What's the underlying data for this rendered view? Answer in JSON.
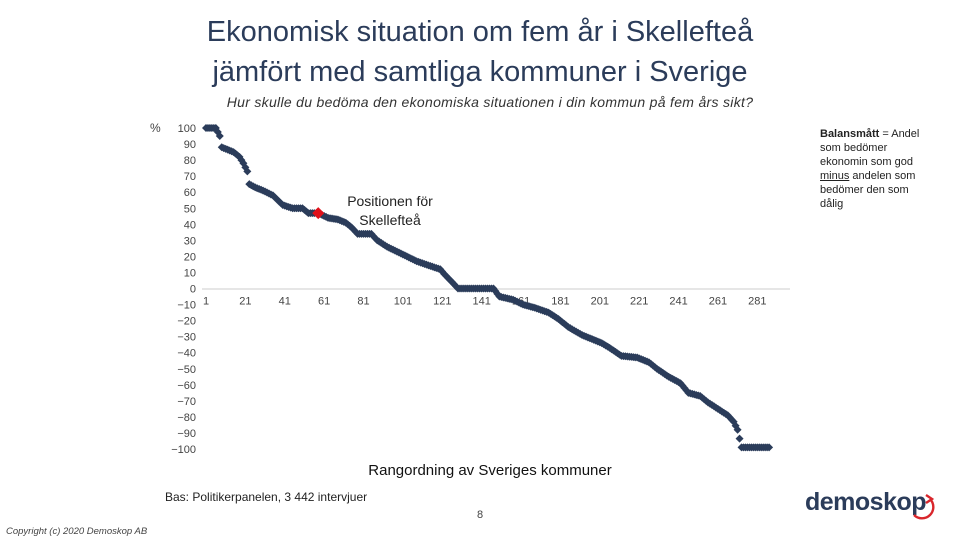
{
  "title_line1": "Ekonomisk situation om fem år i Skellefteå",
  "title_line2": "jämfört med samtliga kommuner i Sverige",
  "subtitle": "Hur skulle du bedöma den ekonomiska situationen i din kommun på fem års sikt?",
  "legend_note": {
    "bold": "Balansmått",
    "part1": " = Andel som bedömer ekonomin som god ",
    "underlined": "minus",
    "part2": " andelen som bedömer den som dålig"
  },
  "base_text": "Bas: Politikerpanelen, 3 442 intervjuer",
  "page_number": "8",
  "copyright": "Copyright (c) 2020 Demoskop AB",
  "logo_text": "demoskop",
  "colors": {
    "series": "#2b3c5a",
    "highlight": "#e0111a",
    "title": "#2b3c5a"
  },
  "chart_data": {
    "type": "scatter",
    "title": "",
    "xlabel": "Rangordning av Sveriges kommuner",
    "ylabel": "%",
    "ylim": [
      -100,
      100
    ],
    "xlim": [
      1,
      290
    ],
    "yticks": [
      "100",
      "90",
      "80",
      "70",
      "60",
      "50",
      "40",
      "30",
      "20",
      "10",
      "0",
      "-10",
      "-20",
      "-30",
      "-40",
      "-50",
      "-60",
      "-70",
      "-80",
      "-90",
      "-100"
    ],
    "xticks": [
      "1",
      "21",
      "41",
      "61",
      "81",
      "101",
      "121",
      "141",
      "161",
      "181",
      "201",
      "221",
      "241",
      "261",
      "281"
    ],
    "series_shape": [
      {
        "x": 1,
        "y": 100
      },
      {
        "x": 6,
        "y": 100
      },
      {
        "x": 8,
        "y": 95
      },
      {
        "x": 9,
        "y": 88
      },
      {
        "x": 13,
        "y": 86
      },
      {
        "x": 15,
        "y": 85
      },
      {
        "x": 18,
        "y": 82
      },
      {
        "x": 20,
        "y": 78
      },
      {
        "x": 22,
        "y": 73
      },
      {
        "x": 23,
        "y": 65
      },
      {
        "x": 26,
        "y": 63
      },
      {
        "x": 30,
        "y": 61
      },
      {
        "x": 35,
        "y": 58
      },
      {
        "x": 40,
        "y": 52
      },
      {
        "x": 45,
        "y": 50
      },
      {
        "x": 50,
        "y": 50
      },
      {
        "x": 53,
        "y": 47
      },
      {
        "x": 58,
        "y": 47
      },
      {
        "x": 63,
        "y": 44
      },
      {
        "x": 68,
        "y": 43
      },
      {
        "x": 72,
        "y": 41
      },
      {
        "x": 75,
        "y": 38
      },
      {
        "x": 78,
        "y": 34
      },
      {
        "x": 85,
        "y": 34
      },
      {
        "x": 88,
        "y": 30
      },
      {
        "x": 93,
        "y": 26
      },
      {
        "x": 98,
        "y": 23
      },
      {
        "x": 103,
        "y": 20
      },
      {
        "x": 108,
        "y": 17
      },
      {
        "x": 115,
        "y": 14
      },
      {
        "x": 120,
        "y": 12
      },
      {
        "x": 122,
        "y": 9
      },
      {
        "x": 126,
        "y": 4
      },
      {
        "x": 129,
        "y": 0
      },
      {
        "x": 147,
        "y": 0
      },
      {
        "x": 150,
        "y": -5
      },
      {
        "x": 157,
        "y": -7
      },
      {
        "x": 162,
        "y": -10
      },
      {
        "x": 168,
        "y": -12
      },
      {
        "x": 175,
        "y": -15
      },
      {
        "x": 180,
        "y": -19
      },
      {
        "x": 185,
        "y": -24
      },
      {
        "x": 192,
        "y": -29
      },
      {
        "x": 198,
        "y": -32
      },
      {
        "x": 202,
        "y": -34
      },
      {
        "x": 206,
        "y": -37
      },
      {
        "x": 212,
        "y": -42
      },
      {
        "x": 220,
        "y": -43
      },
      {
        "x": 226,
        "y": -46
      },
      {
        "x": 230,
        "y": -50
      },
      {
        "x": 236,
        "y": -55
      },
      {
        "x": 242,
        "y": -59
      },
      {
        "x": 246,
        "y": -65
      },
      {
        "x": 252,
        "y": -67
      },
      {
        "x": 256,
        "y": -71
      },
      {
        "x": 261,
        "y": -75
      },
      {
        "x": 266,
        "y": -79
      },
      {
        "x": 269,
        "y": -83
      },
      {
        "x": 271,
        "y": -88
      },
      {
        "x": 273,
        "y": -99
      },
      {
        "x": 287,
        "y": -99
      }
    ],
    "highlight": {
      "x": 58,
      "y": 47,
      "label": "Positionen för Skellefteå"
    }
  }
}
